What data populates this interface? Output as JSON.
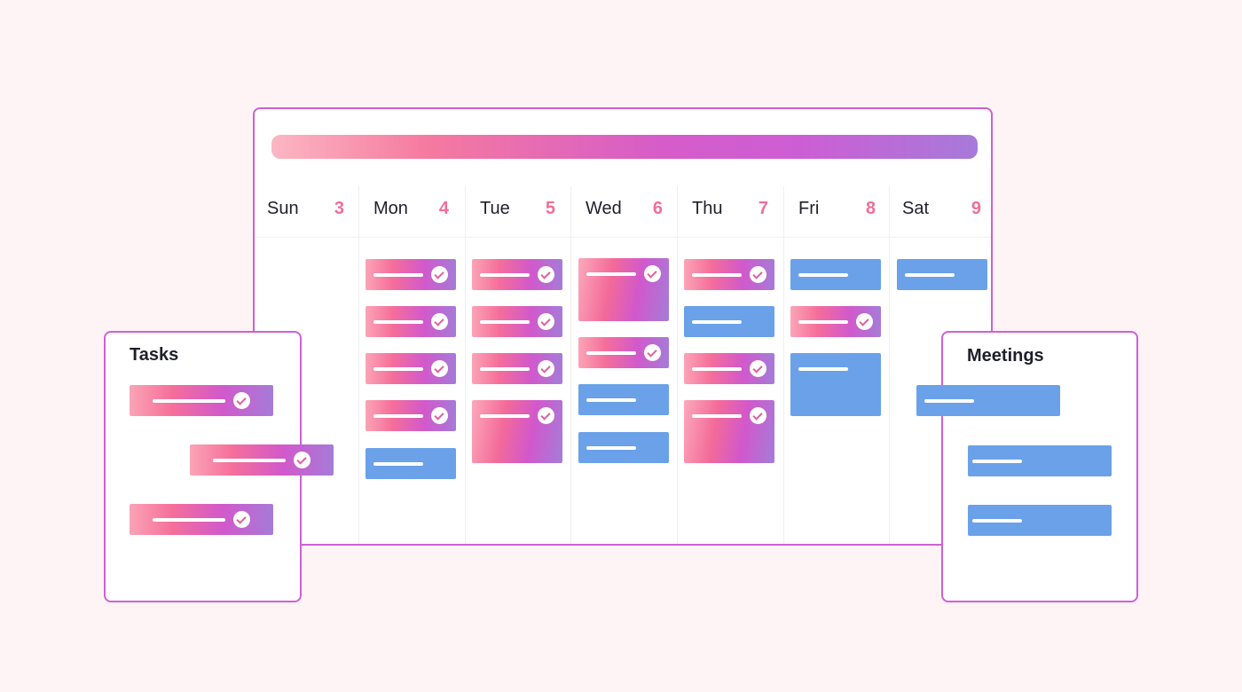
{
  "calendar": {
    "days": [
      {
        "name": "Sun",
        "num": "3"
      },
      {
        "name": "Mon",
        "num": "4"
      },
      {
        "name": "Tue",
        "num": "5"
      },
      {
        "name": "Wed",
        "num": "6"
      },
      {
        "name": "Thu",
        "num": "7"
      },
      {
        "name": "Fri",
        "num": "8"
      },
      {
        "name": "Sat",
        "num": "9"
      }
    ]
  },
  "tasks_panel": {
    "title": "Tasks"
  },
  "meetings_panel": {
    "title": "Meetings"
  },
  "colors": {
    "task_gradient_start": "#fba4b6",
    "task_gradient_mid": "#d159cb",
    "task_gradient_end": "#a57bd8",
    "meeting": "#6aa1e8",
    "accent_border": "#cf5fd6",
    "day_number": "#ef6f96"
  }
}
